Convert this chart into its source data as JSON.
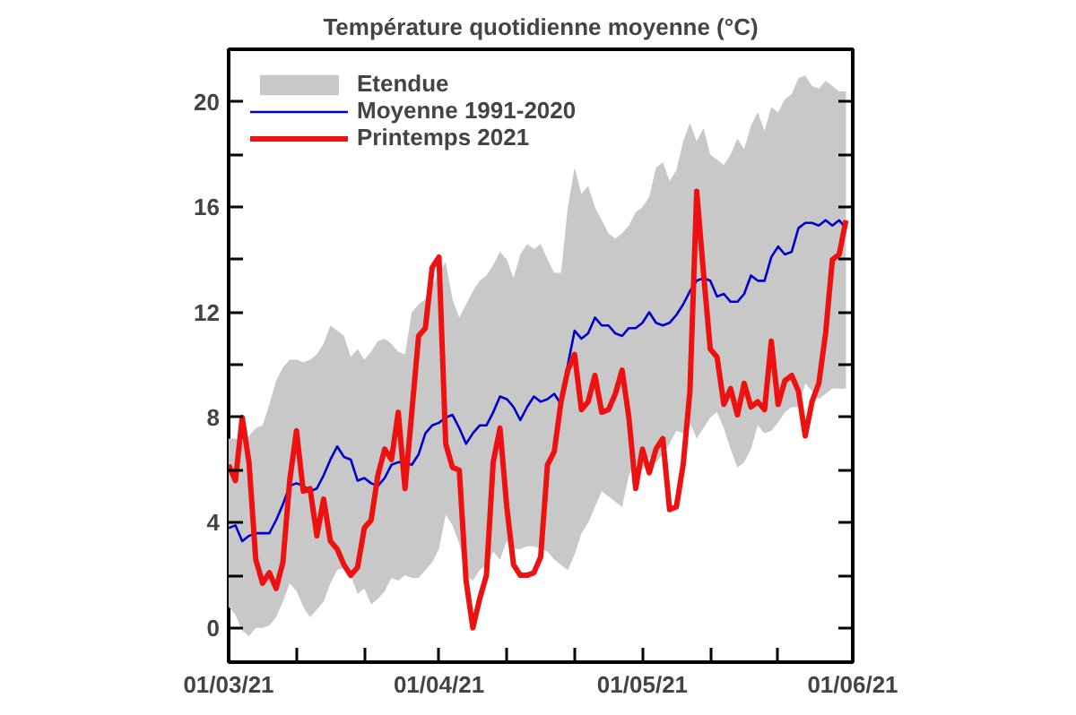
{
  "chart_data": {
    "type": "line",
    "title": "Température quotidienne moyenne (°C)",
    "x": [
      "2021-03-01",
      "2021-03-02",
      "2021-03-03",
      "2021-03-04",
      "2021-03-05",
      "2021-03-06",
      "2021-03-07",
      "2021-03-08",
      "2021-03-09",
      "2021-03-10",
      "2021-03-11",
      "2021-03-12",
      "2021-03-13",
      "2021-03-14",
      "2021-03-15",
      "2021-03-16",
      "2021-03-17",
      "2021-03-18",
      "2021-03-19",
      "2021-03-20",
      "2021-03-21",
      "2021-03-22",
      "2021-03-23",
      "2021-03-24",
      "2021-03-25",
      "2021-03-26",
      "2021-03-27",
      "2021-03-28",
      "2021-03-29",
      "2021-03-30",
      "2021-03-31",
      "2021-04-01",
      "2021-04-02",
      "2021-04-03",
      "2021-04-04",
      "2021-04-05",
      "2021-04-06",
      "2021-04-07",
      "2021-04-08",
      "2021-04-09",
      "2021-04-10",
      "2021-04-11",
      "2021-04-12",
      "2021-04-13",
      "2021-04-14",
      "2021-04-15",
      "2021-04-16",
      "2021-04-17",
      "2021-04-18",
      "2021-04-19",
      "2021-04-20",
      "2021-04-21",
      "2021-04-22",
      "2021-04-23",
      "2021-04-24",
      "2021-04-25",
      "2021-04-26",
      "2021-04-27",
      "2021-04-28",
      "2021-04-29",
      "2021-04-30",
      "2021-05-01",
      "2021-05-02",
      "2021-05-03",
      "2021-05-04",
      "2021-05-05",
      "2021-05-06",
      "2021-05-07",
      "2021-05-08",
      "2021-05-09",
      "2021-05-10",
      "2021-05-11",
      "2021-05-12",
      "2021-05-13",
      "2021-05-14",
      "2021-05-15",
      "2021-05-16",
      "2021-05-17",
      "2021-05-18",
      "2021-05-19",
      "2021-05-20",
      "2021-05-21",
      "2021-05-22",
      "2021-05-23",
      "2021-05-24",
      "2021-05-25",
      "2021-05-26",
      "2021-05-27",
      "2021-05-28",
      "2021-05-29",
      "2021-05-30",
      "2021-05-31"
    ],
    "series": [
      {
        "name": "Etendue",
        "type": "line",
        "color": "#c8c8c8",
        "values": [
          null,
          null,
          null,
          null,
          null,
          null,
          null,
          null,
          null,
          null,
          null,
          null,
          null,
          null,
          null,
          null,
          null,
          null,
          null,
          null,
          null,
          null,
          null,
          null,
          null,
          null,
          null,
          null,
          null,
          null,
          null,
          null,
          null,
          null,
          null,
          null,
          null,
          null,
          null,
          null,
          null,
          null,
          null,
          null,
          null,
          null,
          null,
          null,
          null,
          null,
          null,
          null,
          null,
          null,
          null,
          null,
          null,
          null,
          null,
          null,
          null,
          null,
          null,
          null,
          null,
          null,
          null,
          null,
          null,
          null,
          null,
          null,
          null,
          null,
          null,
          null,
          null,
          null,
          null,
          null,
          null,
          null,
          null,
          null,
          null,
          null,
          null,
          null,
          null,
          null,
          null,
          null
        ],
        "lower": [
          0.8,
          0.5,
          -0.1,
          -0.3,
          0.0,
          0.0,
          0.1,
          0.4,
          1.0,
          1.7,
          1.4,
          0.8,
          0.4,
          0.7,
          1.0,
          1.7,
          2.2,
          2.3,
          2.0,
          1.3,
          1.5,
          0.9,
          1.1,
          1.4,
          1.9,
          1.8,
          2.0,
          1.9,
          1.9,
          2.2,
          2.5,
          3.0,
          4.3,
          3.9,
          3.2,
          2.0,
          1.8,
          2.2,
          2.4,
          2.9,
          2.6,
          3.3,
          3.0,
          3.0,
          3.1,
          3.1,
          3.0,
          2.9,
          2.6,
          2.4,
          2.2,
          2.8,
          3.6,
          4.0,
          4.6,
          5.2,
          5.0,
          4.8,
          4.6,
          5.8,
          6.3,
          6.0,
          6.5,
          6.3,
          6.6,
          7.0,
          7.5,
          7.4,
          7.8,
          7.2,
          7.6,
          8.0,
          8.2,
          7.6,
          6.8,
          6.1,
          6.3,
          6.8,
          7.7,
          7.4,
          7.5,
          7.8,
          8.2,
          8.4,
          8.4,
          9.3,
          9.0,
          8.7,
          8.9,
          9.1,
          9.1,
          9.1
        ],
        "upper": [
          7.2,
          7.2,
          7.1,
          7.3,
          7.6,
          7.7,
          8.5,
          9.4,
          9.9,
          10.2,
          10.2,
          10.1,
          10.2,
          10.4,
          10.8,
          11.5,
          11.3,
          11.1,
          10.3,
          10.6,
          10.2,
          10.5,
          10.9,
          11.0,
          10.8,
          10.5,
          10.4,
          12.0,
          12.3,
          12.5,
          13.0,
          13.5,
          13.9,
          12.5,
          11.8,
          12.3,
          12.8,
          13.2,
          13.4,
          13.8,
          14.3,
          14.0,
          13.3,
          14.2,
          14.6,
          14.4,
          14.6,
          14.0,
          13.5,
          13.5,
          16.0,
          17.5,
          16.5,
          16.8,
          16.0,
          15.5,
          15.0,
          14.8,
          15.0,
          15.3,
          15.8,
          16.0,
          16.4,
          17.5,
          17.7,
          17.0,
          17.4,
          18.5,
          19.2,
          18.5,
          19.0,
          18.0,
          17.8,
          17.6,
          18.0,
          18.6,
          18.2,
          19.1,
          19.6,
          18.9,
          19.8,
          19.6,
          20.1,
          20.3,
          20.9,
          21.0,
          20.6,
          20.5,
          20.8,
          20.6,
          20.4,
          20.4
        ]
      },
      {
        "name": "Moyenne 1991-2020",
        "type": "line",
        "color": "#0000cc",
        "values": [
          3.8,
          3.9,
          3.3,
          3.5,
          3.6,
          3.6,
          3.6,
          4.1,
          4.7,
          5.4,
          5.5,
          5.4,
          5.2,
          5.3,
          5.8,
          6.4,
          6.9,
          6.5,
          6.4,
          5.6,
          5.7,
          5.5,
          5.4,
          5.7,
          6.2,
          6.3,
          6.3,
          6.2,
          6.6,
          7.4,
          7.7,
          7.8,
          8.0,
          8.1,
          7.6,
          7.0,
          7.4,
          7.7,
          7.7,
          8.2,
          8.8,
          8.7,
          8.4,
          7.9,
          8.4,
          8.8,
          8.6,
          8.7,
          8.9,
          8.5,
          10.0,
          11.3,
          11.0,
          11.2,
          11.8,
          11.5,
          11.5,
          11.2,
          11.1,
          11.4,
          11.4,
          11.6,
          12.0,
          11.6,
          11.5,
          11.6,
          11.9,
          12.3,
          12.8,
          13.2,
          13.3,
          13.2,
          12.6,
          12.7,
          12.4,
          12.4,
          12.7,
          13.4,
          13.2,
          13.2,
          14.1,
          14.5,
          14.2,
          14.3,
          15.2,
          15.4,
          15.4,
          15.3,
          15.5,
          15.3,
          15.5,
          15.2
        ]
      },
      {
        "name": "Printemps 2021",
        "color": "#ee1111",
        "values": [
          6.2,
          5.6,
          8.0,
          6.3,
          2.6,
          1.7,
          2.1,
          1.5,
          2.5,
          5.6,
          7.5,
          5.2,
          5.3,
          3.5,
          4.9,
          3.3,
          3.0,
          2.4,
          2.0,
          2.3,
          3.8,
          4.1,
          5.8,
          6.8,
          6.4,
          8.2,
          5.3,
          8.2,
          11.1,
          11.4,
          13.7,
          14.1,
          7.0,
          6.1,
          6.0,
          1.8,
          0.0,
          1.1,
          2.0,
          6.3,
          7.6,
          4.6,
          2.4,
          2.0,
          2.0,
          2.1,
          2.7,
          6.2,
          6.7,
          8.6,
          9.8,
          10.4,
          8.3,
          8.6,
          9.6,
          8.2,
          8.3,
          8.9,
          9.8,
          8.0,
          5.3,
          6.8,
          5.9,
          6.8,
          7.2,
          4.5,
          4.6,
          6.2,
          9.0,
          16.6,
          13.5,
          10.6,
          10.3,
          8.5,
          9.1,
          8.1,
          9.3,
          8.4,
          8.6,
          8.3,
          10.9,
          8.5,
          9.4,
          9.6,
          9.0,
          7.3,
          8.6,
          9.3,
          11.2,
          14.0,
          14.2,
          15.5
        ]
      }
    ],
    "xlim": [
      "2021-03-01",
      "2021-06-01"
    ],
    "xticks": [
      {
        "value": "2021-03-01",
        "label": "01/03/21"
      },
      {
        "value": "2021-03-11",
        "label": null
      },
      {
        "value": "2021-03-21",
        "label": null
      },
      {
        "value": "2021-04-01",
        "label": "01/04/21"
      },
      {
        "value": "2021-04-11",
        "label": null
      },
      {
        "value": "2021-04-21",
        "label": null
      },
      {
        "value": "2021-05-01",
        "label": "01/05/21"
      },
      {
        "value": "2021-05-11",
        "label": null
      },
      {
        "value": "2021-05-21",
        "label": null
      },
      {
        "value": "2021-06-01",
        "label": "01/06/21"
      }
    ],
    "ylim": [
      -1.3,
      22
    ],
    "yticks": [
      0,
      {
        "value": 2,
        "label": null
      },
      4,
      {
        "value": 6,
        "label": null
      },
      8,
      {
        "value": 10,
        "label": null
      },
      12,
      {
        "value": 14,
        "label": null
      },
      16,
      {
        "value": 18,
        "label": null
      },
      20
    ],
    "grid": false,
    "legend": "top left"
  }
}
